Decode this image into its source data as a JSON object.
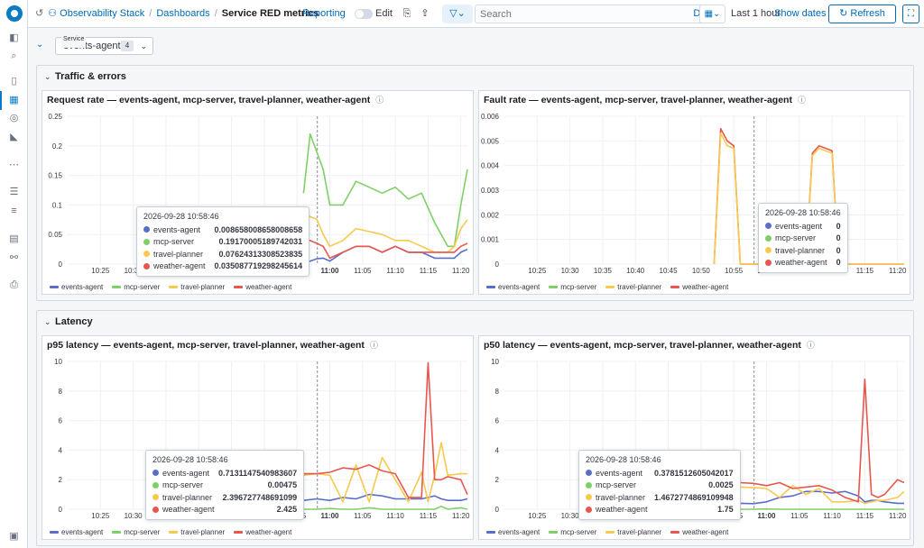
{
  "colors": {
    "events": "#5b6ec7",
    "mcp": "#7fcf69",
    "travel": "#f7c94e",
    "weather": "#e8574d",
    "accent": "#006bb8"
  },
  "nav": {
    "icons": [
      "logo",
      "panel-icon",
      "search-icon",
      "document-icon",
      "dashboard-icon",
      "compass-icon",
      "chart-icon",
      "graph-icon",
      "table-icon",
      "sliders-icon",
      "notes-icon",
      "flow-icon",
      "print-icon",
      "settings-icon"
    ]
  },
  "topbar": {
    "app": "Observability Stack",
    "sep": "/",
    "dashboards": "Dashboards",
    "title": "Service RED metrics",
    "reporting": "Reporting",
    "edit": "Edit",
    "search_placeholder": "Search",
    "dql": "DQL",
    "time_range": "Last 1 hour",
    "show_dates": "Show dates",
    "refresh": "Refresh"
  },
  "variables": {
    "service_label": "Service",
    "service_value": "events-agent",
    "service_count": "4"
  },
  "sections": {
    "traffic": "Traffic & errors",
    "latency": "Latency"
  },
  "legend": [
    "events-agent",
    "mcp-server",
    "travel-planner",
    "weather-agent"
  ],
  "panels": [
    {
      "id": "req",
      "title": "Request rate — events-agent, mcp-server, travel-planner, weather-agent",
      "yticks": [
        "0.25",
        "0.2",
        "0.15",
        "0.1",
        "0.05",
        "0"
      ],
      "xticks": [
        "10:25",
        "10:30",
        "10:35",
        "10:40",
        "10:45",
        "10:50",
        "10:55",
        "11:00",
        "11:05",
        "11:10",
        "11:15",
        "11:20"
      ],
      "xbold": "11:00",
      "tooltip": {
        "time": "2026-09-28 10:58:46",
        "rows": [
          [
            "events-agent",
            "0.008658008658008658"
          ],
          [
            "mcp-server",
            "0.19170005189742031"
          ],
          [
            "travel-planner",
            "0.07624313308523835"
          ],
          [
            "weather-agent",
            "0.035087719298245614"
          ]
        ]
      }
    },
    {
      "id": "fault",
      "title": "Fault rate — events-agent, mcp-server, travel-planner, weather-agent",
      "yticks": [
        "0.006",
        "0.005",
        "0.004",
        "0.003",
        "0.002",
        "0.001",
        "0"
      ],
      "xticks": [
        "10:25",
        "10:30",
        "10:35",
        "10:40",
        "10:45",
        "10:50",
        "10:55",
        "11:00",
        "11:05",
        "11:10",
        "11:15",
        "11:20"
      ],
      "xbold": "11:00",
      "tooltip": {
        "time": "2026-09-28 10:58:46",
        "rows": [
          [
            "events-agent",
            "0"
          ],
          [
            "mcp-server",
            "0"
          ],
          [
            "travel-planner",
            "0"
          ],
          [
            "weather-agent",
            "0"
          ]
        ]
      }
    },
    {
      "id": "p95",
      "title": "p95 latency — events-agent, mcp-server, travel-planner, weather-agent",
      "yticks": [
        "10",
        "8",
        "6",
        "4",
        "2",
        "0"
      ],
      "xticks": [
        "10:25",
        "10:30",
        "10:35",
        "10:40",
        "10:45",
        "10:50",
        "10:55",
        "11:00",
        "11:05",
        "11:10",
        "11:15",
        "11:20"
      ],
      "xbold": "11:00",
      "tooltip": {
        "time": "2026-09-28 10:58:46",
        "rows": [
          [
            "events-agent",
            "0.7131147540983607"
          ],
          [
            "mcp-server",
            "0.00475"
          ],
          [
            "travel-planner",
            "2.396727748691099"
          ],
          [
            "weather-agent",
            "2.425"
          ]
        ]
      }
    },
    {
      "id": "p50",
      "title": "p50 latency — events-agent, mcp-server, travel-planner, weather-agent",
      "yticks": [
        "10",
        "8",
        "6",
        "4",
        "2",
        "0"
      ],
      "xticks": [
        "10:25",
        "10:30",
        "10:35",
        "10:40",
        "10:45",
        "10:50",
        "10:55",
        "11:00",
        "11:05",
        "11:10",
        "11:15",
        "11:20"
      ],
      "xbold": "11:00",
      "tooltip": {
        "time": "2026-09-28 10:58:46",
        "rows": [
          [
            "events-agent",
            "0.3781512605042017"
          ],
          [
            "mcp-server",
            "0.0025"
          ],
          [
            "travel-planner",
            "1.4672774869109948"
          ],
          [
            "weather-agent",
            "1.75"
          ]
        ]
      }
    }
  ],
  "chart_data": [
    {
      "type": "line",
      "title": "Request rate — events-agent, mcp-server, travel-planner, weather-agent",
      "ylim": [
        0,
        0.25
      ],
      "x": [
        "10:56",
        "10:57",
        "10:58",
        "10:59",
        "11:00",
        "11:02",
        "11:04",
        "11:06",
        "11:08",
        "11:10",
        "11:12",
        "11:14",
        "11:16",
        "11:18",
        "11:19",
        "11:20",
        "11:21"
      ],
      "series": [
        {
          "name": "events-agent",
          "values": [
            0,
            0.005,
            0.009,
            0.01,
            0.005,
            0.02,
            0.03,
            0.03,
            0.02,
            0.03,
            0.02,
            0.02,
            0.01,
            0.01,
            0.01,
            0.02,
            0.025
          ]
        },
        {
          "name": "mcp-server",
          "values": [
            0.12,
            0.22,
            0.19,
            0.16,
            0.1,
            0.1,
            0.14,
            0.13,
            0.12,
            0.13,
            0.11,
            0.12,
            0.07,
            0.03,
            0.03,
            0.1,
            0.16
          ]
        },
        {
          "name": "travel-planner",
          "values": [
            0.09,
            0.08,
            0.076,
            0.05,
            0.03,
            0.04,
            0.06,
            0.055,
            0.05,
            0.04,
            0.04,
            0.03,
            0.02,
            0.02,
            0.03,
            0.06,
            0.075
          ]
        },
        {
          "name": "weather-agent",
          "values": [
            0.04,
            0.04,
            0.035,
            0.03,
            0.01,
            0.02,
            0.03,
            0.03,
            0.02,
            0.03,
            0.02,
            0.02,
            0.02,
            0.02,
            0.02,
            0.03,
            0.035
          ]
        }
      ]
    },
    {
      "type": "line",
      "title": "Fault rate — events-agent, mcp-server, travel-planner, weather-agent",
      "ylim": [
        0,
        0.006
      ],
      "x": [
        "10:52",
        "10:53",
        "10:54",
        "10:55",
        "10:56",
        "10:57",
        "11:00",
        "11:06",
        "11:07",
        "11:08",
        "11:09",
        "11:10",
        "11:11",
        "11:21"
      ],
      "series": [
        {
          "name": "weather-agent",
          "values": [
            0,
            0.0055,
            0.005,
            0.0048,
            0,
            0,
            0,
            0,
            0.0045,
            0.0048,
            0.0047,
            0.0046,
            0,
            0
          ]
        },
        {
          "name": "travel-planner",
          "values": [
            0,
            0.0053,
            0.0048,
            0.0047,
            0,
            0,
            0,
            0,
            0.0044,
            0.0047,
            0.0046,
            0.0045,
            0,
            0
          ]
        }
      ]
    },
    {
      "type": "line",
      "title": "p95 latency — events-agent, mcp-server, travel-planner, weather-agent",
      "ylim": [
        0,
        10
      ],
      "x": [
        "10:56",
        "10:58",
        "11:00",
        "11:02",
        "11:04",
        "11:06",
        "11:08",
        "11:10",
        "11:12",
        "11:14",
        "11:15",
        "11:16",
        "11:17",
        "11:18",
        "11:20",
        "11:21"
      ],
      "series": [
        {
          "name": "events-agent",
          "values": [
            0.6,
            0.7,
            0.6,
            0.8,
            0.7,
            1.0,
            0.9,
            0.7,
            0.7,
            0.7,
            0.8,
            0.9,
            0.7,
            0.6,
            0.6,
            0.7
          ]
        },
        {
          "name": "mcp-server",
          "values": [
            0,
            0,
            0.05,
            0,
            0,
            0.1,
            0,
            0,
            0,
            0,
            0,
            0,
            0.2,
            0,
            0.1,
            0
          ]
        },
        {
          "name": "travel-planner",
          "values": [
            2.3,
            2.4,
            2.3,
            0.5,
            3,
            0.5,
            3.5,
            2,
            0.5,
            2.5,
            0.5,
            2.3,
            4.5,
            2.3,
            2.4,
            2.4
          ]
        },
        {
          "name": "weather-agent",
          "values": [
            2.4,
            2.4,
            2.5,
            2.8,
            2.7,
            3,
            2.6,
            2.4,
            0.8,
            0.8,
            9.9,
            2.0,
            2.0,
            2.2,
            2.0,
            1.0
          ]
        }
      ]
    },
    {
      "type": "line",
      "title": "p50 latency — events-agent, mcp-server, travel-planner, weather-agent",
      "ylim": [
        0,
        10
      ],
      "x": [
        "10:56",
        "10:58",
        "11:00",
        "11:02",
        "11:04",
        "11:06",
        "11:08",
        "11:10",
        "11:12",
        "11:14",
        "11:15",
        "11:16",
        "11:17",
        "11:18",
        "11:20",
        "11:21"
      ],
      "series": [
        {
          "name": "events-agent",
          "values": [
            0.4,
            0.38,
            0.5,
            0.8,
            0.9,
            1.2,
            1.2,
            1.1,
            1.2,
            0.9,
            0.5,
            0.6,
            0.6,
            0.5,
            0.4,
            0.4
          ]
        },
        {
          "name": "mcp-server",
          "values": [
            0,
            0,
            0.02,
            0,
            0,
            0,
            0,
            0,
            0,
            0,
            0,
            0,
            0,
            0,
            0,
            0
          ]
        },
        {
          "name": "travel-planner",
          "values": [
            1.5,
            1.47,
            1.4,
            0.8,
            1.6,
            1.0,
            1.4,
            0.5,
            0.5,
            0.6,
            0.4,
            0.5,
            0.6,
            0.6,
            0.8,
            1.2
          ]
        },
        {
          "name": "weather-agent",
          "values": [
            1.8,
            1.75,
            1.6,
            1.8,
            1.4,
            1.5,
            1.6,
            1.3,
            0.8,
            0.5,
            8.8,
            1.0,
            0.8,
            1.0,
            2.0,
            1.8
          ]
        }
      ]
    }
  ]
}
